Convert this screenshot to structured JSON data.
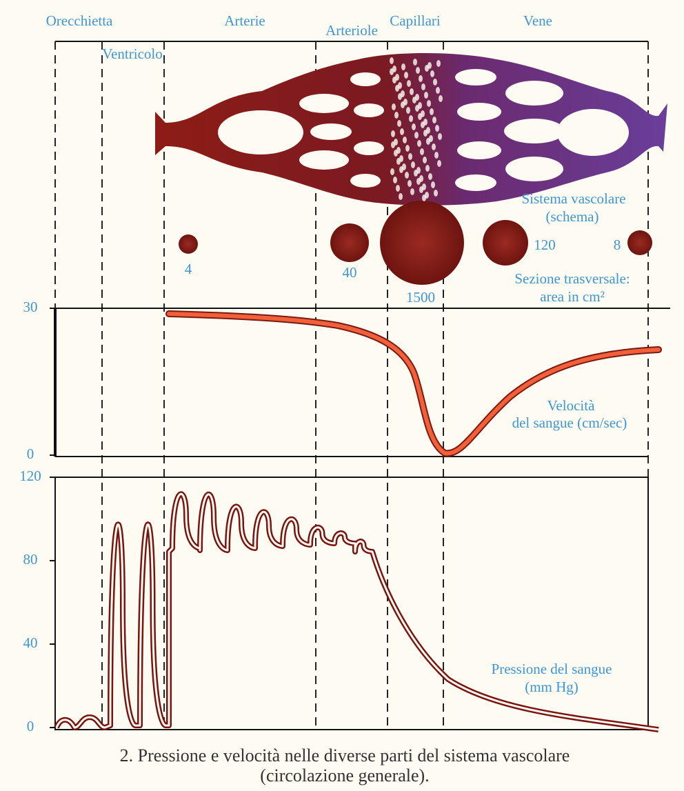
{
  "regions": [
    "Orecchietta",
    "Ventricolo",
    "Arterie",
    "Arteriole",
    "Capillari",
    "Vene"
  ],
  "schema_label": [
    "Sistema vascolare",
    "(schema)"
  ],
  "cross_sections": {
    "values": [
      4,
      40,
      1500,
      120,
      8
    ],
    "label": [
      "Sezione trasversale:",
      "area in cm²"
    ]
  },
  "velocity": {
    "yticks": [
      0,
      30
    ],
    "label": [
      "Velocità",
      "del sangue (cm/sec)"
    ]
  },
  "pressure": {
    "yticks": [
      0,
      40,
      80,
      120
    ],
    "label": [
      "Pressione del sangue",
      "(mm Hg)"
    ]
  },
  "caption": [
    "2. Pressione e velocità nelle diverse parti del sistema vascolare",
    "(circolazione generale)."
  ]
}
